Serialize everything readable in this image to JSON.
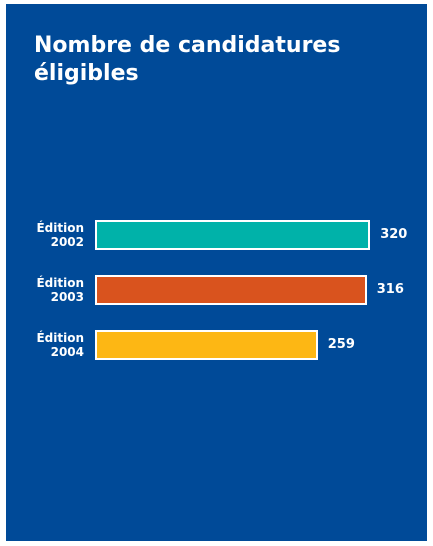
{
  "chart_data": {
    "type": "bar",
    "orientation": "horizontal",
    "title": "Nombre de candidatures éligibles",
    "categories": [
      "Édition 2002",
      "Édition 2003",
      "Édition 2004"
    ],
    "values": [
      320,
      316,
      259
    ],
    "colors": [
      "#00b2a9",
      "#d9531e",
      "#fdb714"
    ],
    "background": "#004a98"
  }
}
